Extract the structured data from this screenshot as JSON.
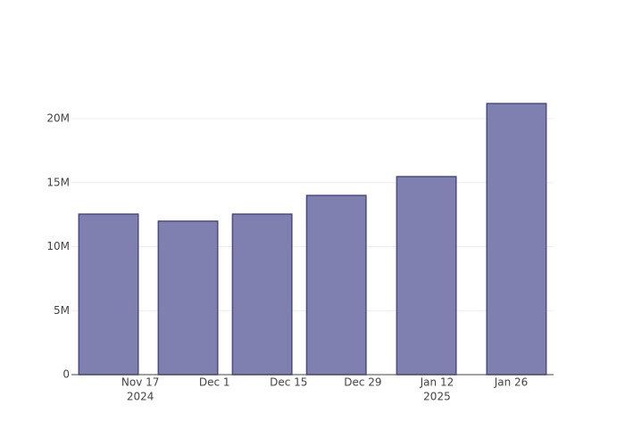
{
  "chart_data": {
    "type": "bar",
    "x": [
      "2024-11-11",
      "2024-11-26",
      "2024-12-10",
      "2024-12-24",
      "2025-01-10",
      "2025-01-27"
    ],
    "values": [
      12540000,
      11990000,
      12540000,
      14000000,
      15470000,
      21180000
    ],
    "color": "#8080b0",
    "line_color": "#4a4a8a",
    "xlim": [
      "2024-11-04",
      "2025-02-03"
    ],
    "xticks": [
      {
        "value": "2024-11-17",
        "label": "Nov 17",
        "year": "2024"
      },
      {
        "value": "2024-12-01",
        "label": "Dec 1"
      },
      {
        "value": "2024-12-15",
        "label": "Dec 15"
      },
      {
        "value": "2024-12-29",
        "label": "Dec 29"
      },
      {
        "value": "2025-01-12",
        "label": "Jan 12",
        "year": "2025"
      },
      {
        "value": "2025-01-26",
        "label": "Jan 26"
      }
    ],
    "ylim": [
      0,
      22300000
    ],
    "yticks": [
      {
        "value": 0,
        "label": "0"
      },
      {
        "value": 5000000,
        "label": "5M"
      },
      {
        "value": 10000000,
        "label": "10M"
      },
      {
        "value": 15000000,
        "label": "15M"
      },
      {
        "value": 20000000,
        "label": "20M"
      }
    ],
    "grid": true
  }
}
